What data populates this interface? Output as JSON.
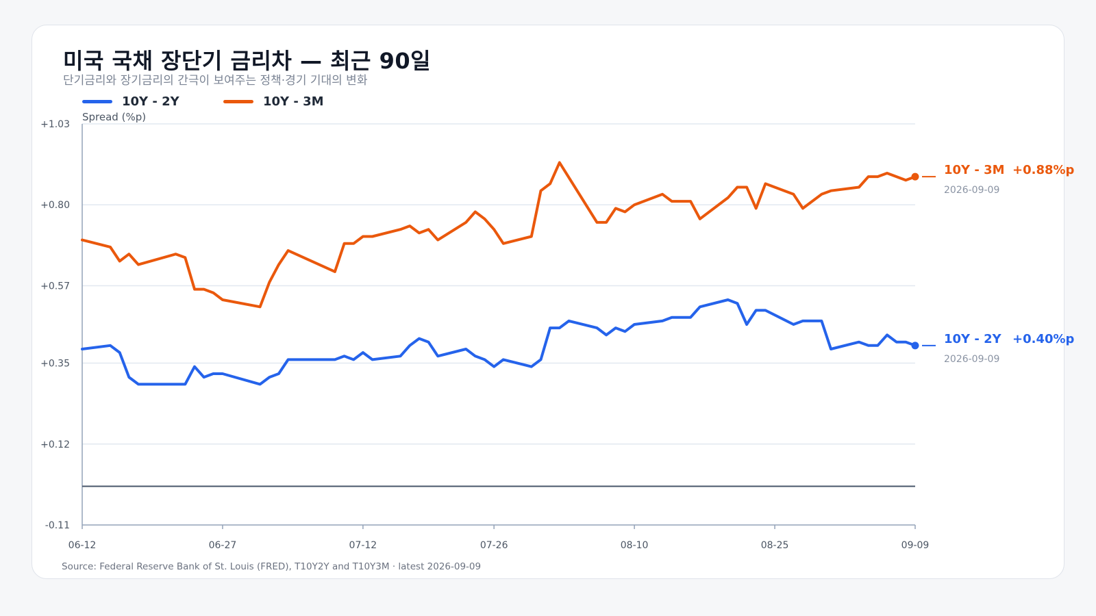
{
  "title": "미국 국채 장단기 금리차 — 최근 90일",
  "subtitle": "단기금리와 장기금리의 간극이 보여주는 정책·경기 기대의 변화",
  "source": "Source: Federal Reserve Bank of St. Louis (FRED), T10Y2Y and T10Y3M · latest 2026-09-09",
  "colors": {
    "series_2y": "#2563eb",
    "series_3m": "#ea580c",
    "zero_line": "#475569",
    "grid": "#e2e8f0",
    "axis": "#94a3b8"
  },
  "chart_data": {
    "type": "line",
    "title": "미국 국채 장단기 금리차 — 최근 90일",
    "subtitle": "단기금리와 장기금리의 간극이 보여주는 정책·경기 기대의 변화",
    "ylabel": "Spread (%p)",
    "xlabel": "",
    "ylim": [
      -0.11,
      1.03
    ],
    "yticks": [
      "+1.03",
      "+0.80",
      "+0.57",
      "+0.35",
      "+0.12",
      "-0.11"
    ],
    "ytick_values": [
      1.03,
      0.8,
      0.57,
      0.35,
      0.12,
      -0.11
    ],
    "xlim": [
      "2026-06-12",
      "2026-09-09"
    ],
    "xticks": [
      "06-12",
      "06-27",
      "07-12",
      "07-26",
      "08-10",
      "08-25",
      "09-09"
    ],
    "xtick_dates": [
      "2026-06-12",
      "2026-06-27",
      "2026-07-12",
      "2026-07-26",
      "2026-08-10",
      "2026-08-25",
      "2026-09-09"
    ],
    "zero_line": 0,
    "grid": "horizontal",
    "legend": "top-left",
    "series": [
      {
        "name": "10Y - 2Y",
        "color": "#2563eb",
        "end_label": "10Y - 2Y",
        "end_value": "+0.40%p",
        "end_date": "2026-09-09",
        "points": [
          [
            "2026-06-12",
            0.39
          ],
          [
            "2026-06-15",
            0.4
          ],
          [
            "2026-06-16",
            0.38
          ],
          [
            "2026-06-17",
            0.31
          ],
          [
            "2026-06-18",
            0.29
          ],
          [
            "2026-06-22",
            0.29
          ],
          [
            "2026-06-23",
            0.29
          ],
          [
            "2026-06-24",
            0.34
          ],
          [
            "2026-06-25",
            0.31
          ],
          [
            "2026-06-26",
            0.32
          ],
          [
            "2026-06-27",
            0.32
          ],
          [
            "2026-07-01",
            0.29
          ],
          [
            "2026-07-02",
            0.31
          ],
          [
            "2026-07-03",
            0.32
          ],
          [
            "2026-07-04",
            0.36
          ],
          [
            "2026-07-09",
            0.36
          ],
          [
            "2026-07-10",
            0.37
          ],
          [
            "2026-07-11",
            0.36
          ],
          [
            "2026-07-12",
            0.38
          ],
          [
            "2026-07-13",
            0.36
          ],
          [
            "2026-07-16",
            0.37
          ],
          [
            "2026-07-17",
            0.4
          ],
          [
            "2026-07-18",
            0.42
          ],
          [
            "2026-07-19",
            0.41
          ],
          [
            "2026-07-20",
            0.37
          ],
          [
            "2026-07-23",
            0.39
          ],
          [
            "2026-07-24",
            0.37
          ],
          [
            "2026-07-25",
            0.36
          ],
          [
            "2026-07-26",
            0.34
          ],
          [
            "2026-07-27",
            0.36
          ],
          [
            "2026-07-30",
            0.34
          ],
          [
            "2026-07-31",
            0.36
          ],
          [
            "2026-08-01",
            0.45
          ],
          [
            "2026-08-02",
            0.45
          ],
          [
            "2026-08-03",
            0.47
          ],
          [
            "2026-08-06",
            0.45
          ],
          [
            "2026-08-07",
            0.43
          ],
          [
            "2026-08-08",
            0.45
          ],
          [
            "2026-08-09",
            0.44
          ],
          [
            "2026-08-10",
            0.46
          ],
          [
            "2026-08-13",
            0.47
          ],
          [
            "2026-08-14",
            0.48
          ],
          [
            "2026-08-16",
            0.48
          ],
          [
            "2026-08-17",
            0.51
          ],
          [
            "2026-08-20",
            0.53
          ],
          [
            "2026-08-21",
            0.52
          ],
          [
            "2026-08-22",
            0.46
          ],
          [
            "2026-08-23",
            0.5
          ],
          [
            "2026-08-24",
            0.5
          ],
          [
            "2026-08-27",
            0.46
          ],
          [
            "2026-08-28",
            0.47
          ],
          [
            "2026-08-30",
            0.47
          ],
          [
            "2026-08-31",
            0.39
          ],
          [
            "2026-09-03",
            0.41
          ],
          [
            "2026-09-04",
            0.4
          ],
          [
            "2026-09-05",
            0.4
          ],
          [
            "2026-09-06",
            0.43
          ],
          [
            "2026-09-07",
            0.41
          ],
          [
            "2026-09-08",
            0.41
          ],
          [
            "2026-09-09",
            0.4
          ]
        ]
      },
      {
        "name": "10Y - 3M",
        "color": "#ea580c",
        "end_label": "10Y - 3M",
        "end_value": "+0.88%p",
        "end_date": "2026-09-09",
        "points": [
          [
            "2026-06-12",
            0.7
          ],
          [
            "2026-06-15",
            0.68
          ],
          [
            "2026-06-16",
            0.64
          ],
          [
            "2026-06-17",
            0.66
          ],
          [
            "2026-06-18",
            0.63
          ],
          [
            "2026-06-22",
            0.66
          ],
          [
            "2026-06-23",
            0.65
          ],
          [
            "2026-06-24",
            0.56
          ],
          [
            "2026-06-25",
            0.56
          ],
          [
            "2026-06-26",
            0.55
          ],
          [
            "2026-06-27",
            0.53
          ],
          [
            "2026-07-01",
            0.51
          ],
          [
            "2026-07-02",
            0.58
          ],
          [
            "2026-07-03",
            0.63
          ],
          [
            "2026-07-04",
            0.67
          ],
          [
            "2026-07-09",
            0.61
          ],
          [
            "2026-07-10",
            0.69
          ],
          [
            "2026-07-11",
            0.69
          ],
          [
            "2026-07-12",
            0.71
          ],
          [
            "2026-07-13",
            0.71
          ],
          [
            "2026-07-16",
            0.73
          ],
          [
            "2026-07-17",
            0.74
          ],
          [
            "2026-07-18",
            0.72
          ],
          [
            "2026-07-19",
            0.73
          ],
          [
            "2026-07-20",
            0.7
          ],
          [
            "2026-07-23",
            0.75
          ],
          [
            "2026-07-24",
            0.78
          ],
          [
            "2026-07-25",
            0.76
          ],
          [
            "2026-07-26",
            0.73
          ],
          [
            "2026-07-27",
            0.69
          ],
          [
            "2026-07-30",
            0.71
          ],
          [
            "2026-07-31",
            0.84
          ],
          [
            "2026-08-01",
            0.86
          ],
          [
            "2026-08-02",
            0.92
          ],
          [
            "2026-08-06",
            0.75
          ],
          [
            "2026-08-07",
            0.75
          ],
          [
            "2026-08-08",
            0.79
          ],
          [
            "2026-08-09",
            0.78
          ],
          [
            "2026-08-10",
            0.8
          ],
          [
            "2026-08-13",
            0.83
          ],
          [
            "2026-08-14",
            0.81
          ],
          [
            "2026-08-16",
            0.81
          ],
          [
            "2026-08-17",
            0.76
          ],
          [
            "2026-08-20",
            0.82
          ],
          [
            "2026-08-21",
            0.85
          ],
          [
            "2026-08-22",
            0.85
          ],
          [
            "2026-08-23",
            0.79
          ],
          [
            "2026-08-24",
            0.86
          ],
          [
            "2026-08-27",
            0.83
          ],
          [
            "2026-08-28",
            0.79
          ],
          [
            "2026-08-30",
            0.83
          ],
          [
            "2026-08-31",
            0.84
          ],
          [
            "2026-09-03",
            0.85
          ],
          [
            "2026-09-04",
            0.88
          ],
          [
            "2026-09-05",
            0.88
          ],
          [
            "2026-09-06",
            0.89
          ],
          [
            "2026-09-07",
            0.88
          ],
          [
            "2026-09-08",
            0.87
          ],
          [
            "2026-09-09",
            0.88
          ]
        ]
      }
    ]
  }
}
